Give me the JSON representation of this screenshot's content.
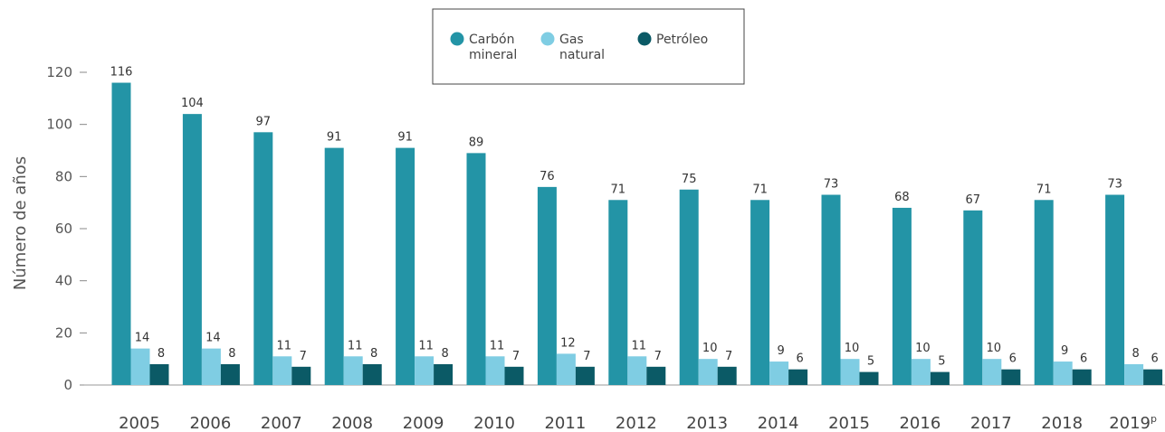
{
  "chart_data": {
    "type": "bar",
    "ylabel": "Número de años",
    "ylim": [
      0,
      120
    ],
    "yticks": [
      "0",
      "20",
      "40",
      "60",
      "80",
      "100",
      "120"
    ],
    "ytick_values": [
      0,
      20,
      40,
      60,
      80,
      100,
      120
    ],
    "grid": false,
    "legend_position": "top-center",
    "categories": [
      "2005",
      "2006",
      "2007",
      "2008",
      "2009",
      "2010",
      "2011",
      "2012",
      "2013",
      "2014",
      "2015",
      "2016",
      "2017",
      "2018",
      "2019"
    ],
    "last_category_superscript": "p",
    "series": [
      {
        "name": "Carbón mineral",
        "name_lines": [
          "Carbón",
          "mineral"
        ],
        "color": "#2394a6",
        "values": [
          116,
          104,
          97,
          91,
          91,
          89,
          76,
          71,
          75,
          71,
          73,
          68,
          67,
          71,
          73
        ]
      },
      {
        "name": "Gas natural",
        "name_lines": [
          "Gas",
          "natural"
        ],
        "color": "#7fcde3",
        "values": [
          14,
          14,
          11,
          11,
          11,
          11,
          12,
          11,
          10,
          9,
          10,
          10,
          10,
          9,
          8
        ]
      },
      {
        "name": "Petróleo",
        "name_lines": [
          "Petróleo"
        ],
        "color": "#0b5a66",
        "values": [
          8,
          8,
          7,
          8,
          8,
          7,
          7,
          7,
          7,
          6,
          5,
          5,
          6,
          6,
          6
        ]
      }
    ]
  }
}
